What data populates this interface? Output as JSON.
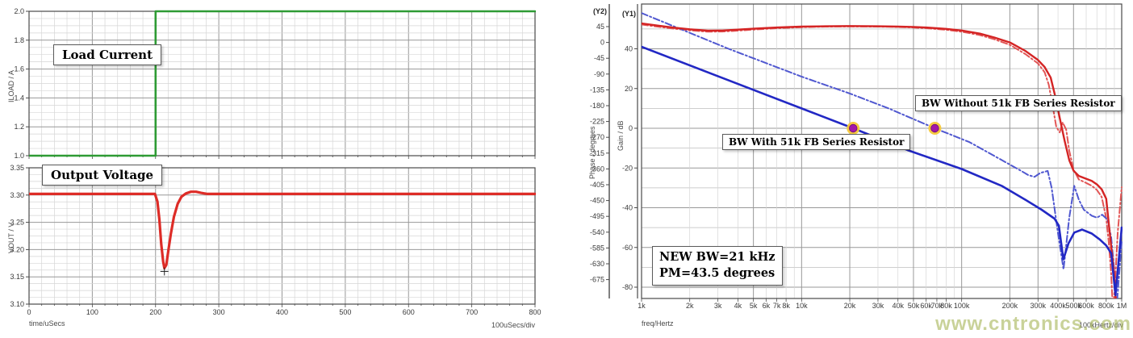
{
  "watermark": {
    "text": "www.cntronics.com"
  },
  "chart_data": [
    {
      "id": "transient",
      "type": "line",
      "xlabel": "time/uSecs",
      "xdiv_label": "100uSecs/div",
      "xlim": [
        0,
        800
      ],
      "x_minor_step": 20,
      "xticks": [
        [
          0,
          "0"
        ],
        [
          100,
          "100"
        ],
        [
          200,
          "200"
        ],
        [
          300,
          "300"
        ],
        [
          400,
          "400"
        ],
        [
          500,
          "500"
        ],
        [
          600,
          "600"
        ],
        [
          700,
          "700"
        ],
        [
          800,
          "800"
        ]
      ],
      "panels": [
        {
          "name": "load_current",
          "label": "Load Current",
          "ylabel": "ILOAD / A",
          "ylim": [
            1.0,
            2.0
          ],
          "y_minor_step": 0.05,
          "yticks": [
            [
              2.0,
              "2.0"
            ],
            [
              1.8,
              "1.8"
            ],
            [
              1.6,
              "1.6"
            ],
            [
              1.4,
              "1.4"
            ],
            [
              1.2,
              "1.2"
            ],
            [
              1.0,
              "1.0"
            ]
          ],
          "series": [
            {
              "name": "ILOAD",
              "color": "#2e9b34",
              "width": 2.6,
              "dash": "",
              "points": [
                [
                  0,
                  1.0
                ],
                [
                  200,
                  1.0
                ],
                [
                  200,
                  2.0
                ],
                [
                  800,
                  2.0
                ]
              ]
            }
          ]
        },
        {
          "name": "output_voltage",
          "label": "Output Voltage",
          "ylabel": "VOUT / V",
          "ylim": [
            3.1,
            3.35
          ],
          "y_minor_step": 0.0125,
          "yticks": [
            [
              3.35,
              "3.35"
            ],
            [
              3.3,
              "3.30"
            ],
            [
              3.25,
              "3.25"
            ],
            [
              3.2,
              "3.20"
            ],
            [
              3.15,
              "3.15"
            ],
            [
              3.1,
              "3.10"
            ]
          ],
          "series": [
            {
              "name": "VOUT",
              "color": "#dd2c27",
              "width": 3.2,
              "dash": "",
              "points": [
                [
                  0,
                  3.302
                ],
                [
                  199,
                  3.302
                ],
                [
                  203,
                  3.288
                ],
                [
                  206,
                  3.255
                ],
                [
                  209,
                  3.21
                ],
                [
                  212,
                  3.178
                ],
                [
                  214,
                  3.166
                ],
                [
                  217,
                  3.172
                ],
                [
                  220,
                  3.196
                ],
                [
                  224,
                  3.228
                ],
                [
                  229,
                  3.26
                ],
                [
                  235,
                  3.284
                ],
                [
                  241,
                  3.297
                ],
                [
                  248,
                  3.303
                ],
                [
                  256,
                  3.306
                ],
                [
                  264,
                  3.306
                ],
                [
                  272,
                  3.304
                ],
                [
                  282,
                  3.302
                ],
                [
                  800,
                  3.302
                ]
              ]
            }
          ],
          "cursor": {
            "t": 214,
            "v": 3.16
          }
        }
      ]
    },
    {
      "id": "bode",
      "type": "line",
      "xscale": "log",
      "xlabel": "freq/Hertz",
      "xdiv_label": "100kHertz/div",
      "xlim": [
        1000,
        1000000
      ],
      "xticks": [
        [
          1000,
          "1k"
        ],
        [
          2000,
          "2k"
        ],
        [
          3000,
          "3k"
        ],
        [
          4000,
          "4k"
        ],
        [
          5000,
          "5k"
        ],
        [
          6000,
          "6k"
        ],
        [
          7000,
          "7k"
        ],
        [
          8000,
          "8k"
        ],
        [
          10000,
          "10k"
        ],
        [
          20000,
          "20k"
        ],
        [
          30000,
          "30k"
        ],
        [
          40000,
          "40k"
        ],
        [
          50000,
          "50k"
        ],
        [
          60000,
          "60k"
        ],
        [
          70000,
          "70k"
        ],
        [
          80000,
          "80k"
        ],
        [
          100000,
          "100k"
        ],
        [
          200000,
          "200k"
        ],
        [
          300000,
          "300k"
        ],
        [
          400000,
          "400k"
        ],
        [
          500000,
          "500k"
        ],
        [
          600000,
          "600k"
        ],
        [
          800000,
          "800k"
        ],
        [
          1000000,
          "1M"
        ]
      ],
      "x_major_gridlines": [
        5000,
        10000,
        20000,
        50000,
        100000,
        200000,
        300000,
        500000,
        1000000
      ],
      "y1": {
        "header": "(Y1)",
        "ylabel": "Gain / dB",
        "ylim": [
          -80,
          40
        ],
        "ticks": [
          [
            40,
            "40"
          ],
          [
            20,
            "20"
          ],
          [
            0,
            "0"
          ],
          [
            -20,
            "-20"
          ],
          [
            -40,
            "-40"
          ],
          [
            -60,
            "-60"
          ],
          [
            -80,
            "-80"
          ]
        ]
      },
      "y2": {
        "header": "(Y2)",
        "ylabel": "Phase / degrees",
        "ticks": [
          [
            45,
            "45"
          ],
          [
            0,
            "0"
          ],
          [
            -45,
            "-45"
          ],
          [
            -90,
            "-90"
          ],
          [
            -135,
            "-135"
          ],
          [
            -180,
            "-180"
          ],
          [
            -225,
            "-225"
          ],
          [
            -270,
            "-270"
          ],
          [
            -315,
            "-315"
          ],
          [
            -360,
            "-360"
          ],
          [
            -405,
            "-405"
          ],
          [
            -450,
            "-450"
          ],
          [
            -495,
            "-495"
          ],
          [
            -540,
            "-540"
          ],
          [
            -585,
            "-585"
          ],
          [
            -630,
            "-630"
          ],
          [
            -675,
            "-675"
          ]
        ]
      },
      "series": [
        {
          "name": "phase_with_51k",
          "axis": "y2",
          "color": "#d42424",
          "width": 2.4,
          "dash": "",
          "points": [
            [
              1000,
              54
            ],
            [
              1300,
              47
            ],
            [
              1600,
              42
            ],
            [
              2000,
              37.5
            ],
            [
              2600,
              33.5
            ],
            [
              3200,
              34
            ],
            [
              4000,
              36.5
            ],
            [
              5000,
              39
            ],
            [
              7000,
              42.5
            ],
            [
              10000,
              45
            ],
            [
              14000,
              46
            ],
            [
              20000,
              46.5
            ],
            [
              30000,
              46
            ],
            [
              40000,
              45
            ],
            [
              50000,
              44
            ],
            [
              60000,
              42.5
            ],
            [
              80000,
              38.5
            ],
            [
              100000,
              34
            ],
            [
              130000,
              25
            ],
            [
              160000,
              14
            ],
            [
              200000,
              0
            ],
            [
              250000,
              -24
            ],
            [
              300000,
              -50
            ],
            [
              330000,
              -70
            ],
            [
              360000,
              -100
            ],
            [
              385000,
              -155
            ],
            [
              410000,
              -215
            ],
            [
              440000,
              -280
            ],
            [
              470000,
              -335
            ],
            [
              500000,
              -365
            ],
            [
              540000,
              -380
            ],
            [
              600000,
              -388
            ],
            [
              650000,
              -394
            ],
            [
              700000,
              -404
            ],
            [
              750000,
              -418
            ],
            [
              800000,
              -445
            ],
            [
              850000,
              -560
            ],
            [
              900000,
              -665
            ],
            [
              935000,
              -800
            ]
          ]
        },
        {
          "name": "phase_without_51k",
          "axis": "y2",
          "color": "#e25555",
          "width": 2,
          "dash": "8 3 2 3",
          "points": [
            [
              1000,
              51
            ],
            [
              1300,
              44
            ],
            [
              1600,
              39
            ],
            [
              2000,
              34.5
            ],
            [
              2600,
              30.5
            ],
            [
              3200,
              31
            ],
            [
              4000,
              33.5
            ],
            [
              5000,
              36.5
            ],
            [
              7000,
              40.5
            ],
            [
              10000,
              43.5
            ],
            [
              14000,
              45
            ],
            [
              20000,
              45.5
            ],
            [
              30000,
              45
            ],
            [
              40000,
              44
            ],
            [
              50000,
              42.5
            ],
            [
              60000,
              40.5
            ],
            [
              80000,
              36
            ],
            [
              100000,
              30.5
            ],
            [
              130000,
              21
            ],
            [
              160000,
              9
            ],
            [
              200000,
              -7
            ],
            [
              250000,
              -33
            ],
            [
              300000,
              -60
            ],
            [
              330000,
              -85
            ],
            [
              350000,
              -120
            ],
            [
              370000,
              -180
            ],
            [
              390000,
              -240
            ],
            [
              410000,
              -256
            ],
            [
              428000,
              -228
            ],
            [
              450000,
              -248
            ],
            [
              470000,
              -308
            ],
            [
              500000,
              -362
            ],
            [
              540000,
              -390
            ],
            [
              600000,
              -400
            ],
            [
              650000,
              -408
            ],
            [
              700000,
              -420
            ],
            [
              750000,
              -440
            ],
            [
              800000,
              -500
            ],
            [
              830000,
              -570
            ],
            [
              860000,
              -660
            ],
            [
              880000,
              -760
            ],
            [
              905000,
              -700
            ],
            [
              945000,
              -540
            ],
            [
              1000000,
              -412
            ]
          ]
        },
        {
          "name": "gain_without_51k",
          "axis": "y1",
          "color": "#5058d0",
          "width": 2,
          "dash": "8 3 2 3",
          "points": [
            [
              1000,
              58
            ],
            [
              3500,
              40
            ],
            [
              10000,
              26
            ],
            [
              20000,
              17.5
            ],
            [
              35000,
              10
            ],
            [
              68000,
              0
            ],
            [
              112000,
              -7
            ],
            [
              178000,
              -16
            ],
            [
              230000,
              -21
            ],
            [
              260000,
              -23.5
            ],
            [
              285000,
              -24.5
            ],
            [
              310000,
              -22.5
            ],
            [
              345000,
              -21.5
            ],
            [
              365000,
              -30
            ],
            [
              400000,
              -53
            ],
            [
              433000,
              -71
            ],
            [
              470000,
              -45
            ],
            [
              505000,
              -29
            ],
            [
              540000,
              -36
            ],
            [
              580000,
              -41
            ],
            [
              650000,
              -44
            ],
            [
              700000,
              -45
            ],
            [
              755000,
              -43.5
            ],
            [
              816000,
              -46
            ],
            [
              860000,
              -55
            ],
            [
              895000,
              -70
            ],
            [
              930000,
              -90
            ],
            [
              1000000,
              -57
            ]
          ]
        },
        {
          "name": "gain_with_51k",
          "axis": "y1",
          "color": "#2228c4",
          "width": 2.6,
          "dash": "",
          "points": [
            [
              1000,
              41
            ],
            [
              3160,
              25.5
            ],
            [
              10000,
              10
            ],
            [
              21000,
              0
            ],
            [
              46000,
              -11
            ],
            [
              100000,
              -20.5
            ],
            [
              178000,
              -29
            ],
            [
              250000,
              -36
            ],
            [
              316000,
              -41
            ],
            [
              380000,
              -45.5
            ],
            [
              405000,
              -49
            ],
            [
              432000,
              -66
            ],
            [
              465000,
              -58
            ],
            [
              505000,
              -52.5
            ],
            [
              565000,
              -51
            ],
            [
              650000,
              -53
            ],
            [
              730000,
              -56
            ],
            [
              800000,
              -59
            ],
            [
              860000,
              -63
            ],
            [
              915000,
              -84
            ],
            [
              1000000,
              -50
            ]
          ]
        }
      ],
      "markers": [
        {
          "freq": 21000,
          "value": 0,
          "axis": "y1"
        },
        {
          "freq": 68000,
          "value": 0,
          "axis": "y1"
        }
      ],
      "marker_colors": {
        "ring": "#f6c838",
        "core": "#a317a9"
      },
      "annotations": [
        {
          "name": "bw_without_label",
          "text": "BW Without 51k FB Series Resistor"
        },
        {
          "name": "bw_with_label",
          "text": "BW With 51k FB Series Resistor"
        },
        {
          "name": "new_bw_label",
          "lines": [
            "NEW BW=21 kHz",
            "PM=43.5 degrees"
          ]
        }
      ]
    }
  ]
}
